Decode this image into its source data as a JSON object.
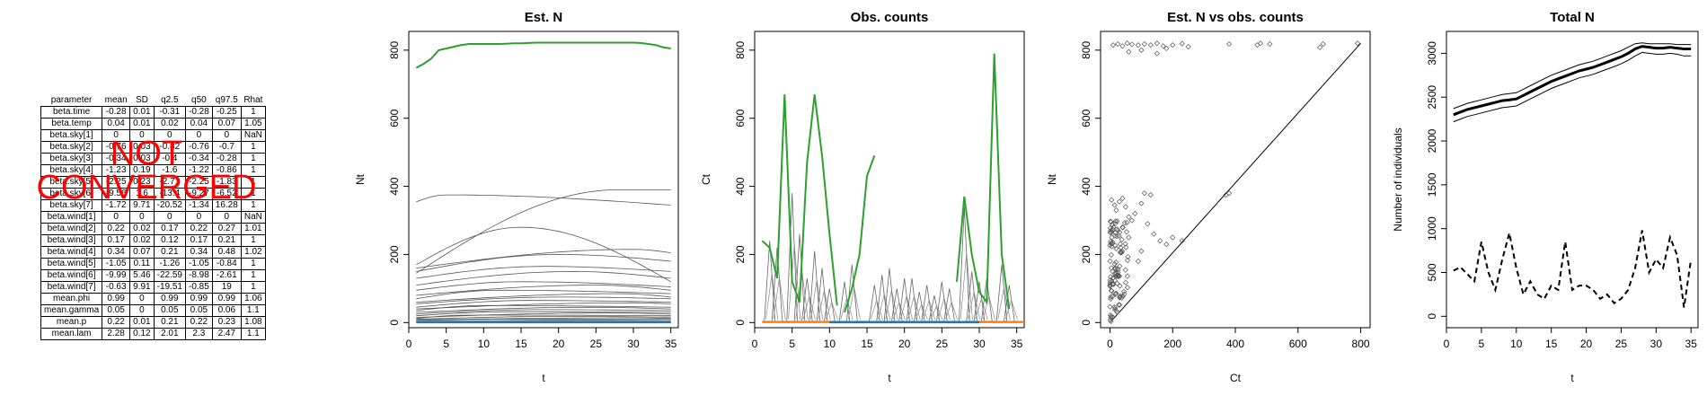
{
  "summary_table": {
    "columns": [
      "parameter",
      "mean",
      "SD",
      "q2.5",
      "q50",
      "q97.5",
      "Rhat"
    ],
    "rows": [
      [
        "beta.time",
        "-0.28",
        "0.01",
        "-0.31",
        "-0.28",
        "-0.25",
        "1"
      ],
      [
        "beta.temp",
        "0.04",
        "0.01",
        "0.02",
        "0.04",
        "0.07",
        "1.05"
      ],
      [
        "beta.sky[1]",
        "0",
        "0",
        "0",
        "0",
        "0",
        "NaN"
      ],
      [
        "beta.sky[2]",
        "-0.76",
        "0.03",
        "-0.82",
        "-0.76",
        "-0.7",
        "1"
      ],
      [
        "beta.sky[3]",
        "-0.34",
        "0.03",
        "-0.4",
        "-0.34",
        "-0.28",
        "1"
      ],
      [
        "beta.sky[4]",
        "-1.23",
        "0.19",
        "-1.6",
        "-1.22",
        "-0.86",
        "1"
      ],
      [
        "beta.sky[5]",
        "-2.25",
        "0.23",
        "-2.71",
        "-2.25",
        "-1.83",
        "1"
      ],
      [
        "beta.sky[6]",
        "-9.56",
        "1.6",
        "-13.4",
        "-9.27",
        "-6.52",
        "1"
      ],
      [
        "beta.sky[7]",
        "-1.72",
        "9.71",
        "-20.52",
        "-1.34",
        "16.28",
        "1"
      ],
      [
        "beta.wind[1]",
        "0",
        "0",
        "0",
        "0",
        "0",
        "NaN"
      ],
      [
        "beta.wind[2]",
        "0.22",
        "0.02",
        "0.17",
        "0.22",
        "0.27",
        "1.01"
      ],
      [
        "beta.wind[3]",
        "0.17",
        "0.02",
        "0.12",
        "0.17",
        "0.21",
        "1"
      ],
      [
        "beta.wind[4]",
        "0.34",
        "0.07",
        "0.21",
        "0.34",
        "0.48",
        "1.02"
      ],
      [
        "beta.wind[5]",
        "-1.05",
        "0.11",
        "-1.26",
        "-1.05",
        "-0.84",
        "1"
      ],
      [
        "beta.wind[6]",
        "-9.99",
        "5.46",
        "-22.59",
        "-8.98",
        "-2.61",
        "1"
      ],
      [
        "beta.wind[7]",
        "-0.63",
        "9.91",
        "-19.51",
        "-0.85",
        "19",
        "1"
      ],
      [
        "mean.phi",
        "0.99",
        "0",
        "0.99",
        "0.99",
        "0.99",
        "1.06"
      ],
      [
        "mean.gamma",
        "0.05",
        "0",
        "0.05",
        "0.05",
        "0.06",
        "1.1"
      ],
      [
        "mean.p",
        "0.22",
        "0.01",
        "0.21",
        "0.22",
        "0.23",
        "1.08"
      ],
      [
        "mean.lam",
        "2.28",
        "0.12",
        "2.01",
        "2.3",
        "2.47",
        "1.1"
      ]
    ],
    "overlay_lines": [
      "NOT",
      "CONVERGED"
    ],
    "overlay_color": "#ff0000"
  },
  "chart_data": [
    {
      "type": "line",
      "title": "Est. N",
      "xlabel": "t",
      "ylabel": "Nt",
      "xlim": [
        0,
        36
      ],
      "ylim": [
        -15,
        855
      ],
      "xticks": [
        0,
        5,
        10,
        15,
        20,
        25,
        30,
        35
      ],
      "yticks": [
        0,
        200,
        400,
        600,
        800
      ],
      "x": [
        1,
        2,
        3,
        4,
        5,
        6,
        7,
        8,
        9,
        10,
        11,
        12,
        13,
        14,
        15,
        16,
        17,
        18,
        19,
        20,
        21,
        22,
        23,
        24,
        25,
        26,
        27,
        28,
        29,
        30,
        31,
        32,
        33,
        34,
        35
      ],
      "highlight": {
        "color": "#2ca02c",
        "values": [
          748,
          760,
          775,
          800,
          805,
          810,
          815,
          818,
          818,
          818,
          818,
          818,
          819,
          820,
          820,
          821,
          822,
          822,
          822,
          822,
          822,
          822,
          822,
          822,
          822,
          822,
          822,
          822,
          822,
          822,
          821,
          818,
          815,
          808,
          805
        ]
      },
      "gray_series": [
        {
          "start": 355,
          "end": 345,
          "peak_t": 5,
          "peak": 375
        },
        {
          "start": 145,
          "end": 390,
          "peak_t": 28,
          "peak": 390
        },
        {
          "start": 170,
          "end": 120,
          "peak_t": 15,
          "peak": 280
        },
        {
          "start": 160,
          "end": 205,
          "peak_t": 30,
          "peak": 215
        },
        {
          "start": 150,
          "end": 180,
          "peak_t": 20,
          "peak": 200
        },
        {
          "start": 130,
          "end": 150,
          "peak_t": 18,
          "peak": 165
        },
        {
          "start": 110,
          "end": 130,
          "peak_t": 22,
          "peak": 150
        },
        {
          "start": 95,
          "end": 105,
          "peak_t": 15,
          "peak": 120
        },
        {
          "start": 80,
          "end": 95,
          "peak_t": 25,
          "peak": 110
        },
        {
          "start": 70,
          "end": 85,
          "peak_t": 12,
          "peak": 95
        },
        {
          "start": 60,
          "end": 75,
          "peak_t": 28,
          "peak": 85
        },
        {
          "start": 55,
          "end": 70,
          "peak_t": 20,
          "peak": 75
        },
        {
          "start": 45,
          "end": 60,
          "peak_t": 16,
          "peak": 65
        },
        {
          "start": 40,
          "end": 55,
          "peak_t": 30,
          "peak": 58
        },
        {
          "start": 35,
          "end": 45,
          "peak_t": 10,
          "peak": 50
        },
        {
          "start": 30,
          "end": 40,
          "peak_t": 24,
          "peak": 45
        },
        {
          "start": 25,
          "end": 35,
          "peak_t": 18,
          "peak": 38
        },
        {
          "start": 20,
          "end": 30,
          "peak_t": 14,
          "peak": 32
        },
        {
          "start": 15,
          "end": 25,
          "peak_t": 26,
          "peak": 28
        },
        {
          "start": 12,
          "end": 20,
          "peak_t": 8,
          "peak": 22
        },
        {
          "start": 10,
          "end": 16,
          "peak_t": 20,
          "peak": 18
        },
        {
          "start": 8,
          "end": 12,
          "peak_t": 30,
          "peak": 14
        },
        {
          "start": 5,
          "end": 10,
          "peak_t": 12,
          "peak": 10
        },
        {
          "start": 3,
          "end": 6,
          "peak_t": 22,
          "peak": 7
        }
      ],
      "baseline_series": [
        {
          "color": "#ff7f0e",
          "value": 3
        },
        {
          "color": "#1f77b4",
          "value": 1
        }
      ]
    },
    {
      "type": "line",
      "title": "Obs. counts",
      "xlabel": "t",
      "ylabel": "Ct",
      "xlim": [
        0,
        36
      ],
      "ylim": [
        -15,
        855
      ],
      "xticks": [
        0,
        5,
        10,
        15,
        20,
        25,
        30,
        35
      ],
      "yticks": [
        0,
        200,
        400,
        600,
        800
      ],
      "highlight_segments": {
        "color": "#2ca02c",
        "segments": [
          [
            [
              1,
              240
            ],
            [
              2,
              220
            ],
            [
              3,
              130
            ],
            [
              4,
              670
            ],
            [
              5,
              120
            ],
            [
              6,
              60
            ],
            [
              7,
              470
            ],
            [
              8,
              670
            ],
            [
              9,
              490
            ],
            [
              10,
              260
            ],
            [
              11,
              50
            ]
          ],
          [
            [
              12,
              30
            ],
            [
              13,
              100
            ],
            [
              14,
              200
            ],
            [
              15,
              430
            ],
            [
              16,
              490
            ]
          ],
          [
            [
              27,
              120
            ],
            [
              28,
              370
            ],
            [
              29,
              200
            ],
            [
              30,
              90
            ],
            [
              31,
              60
            ],
            [
              32,
              790
            ],
            [
              33,
              200
            ],
            [
              34,
              40
            ]
          ]
        ]
      },
      "gray_spikes": [
        [
          2,
          240
        ],
        [
          3,
          220
        ],
        [
          5,
          380
        ],
        [
          6,
          260
        ],
        [
          7,
          130
        ],
        [
          8,
          210
        ],
        [
          9,
          160
        ],
        [
          10,
          100
        ],
        [
          12,
          120
        ],
        [
          13,
          170
        ],
        [
          16,
          110
        ],
        [
          17,
          140
        ],
        [
          18,
          160
        ],
        [
          19,
          100
        ],
        [
          20,
          130
        ],
        [
          21,
          130
        ],
        [
          22,
          90
        ],
        [
          23,
          110
        ],
        [
          24,
          80
        ],
        [
          25,
          120
        ],
        [
          26,
          100
        ],
        [
          28,
          340
        ],
        [
          29,
          150
        ],
        [
          30,
          120
        ],
        [
          31,
          130
        ],
        [
          33,
          170
        ],
        [
          34,
          110
        ]
      ],
      "baseline_series": [
        {
          "color": "#ff7f0e",
          "value": 2,
          "from": 1,
          "to": 36
        },
        {
          "color": "#1f77b4",
          "value": 1,
          "from": 10,
          "to": 30
        }
      ]
    },
    {
      "type": "scatter",
      "title": "Est. N vs obs. counts",
      "xlabel": "Ct",
      "ylabel": "Nt",
      "xlim": [
        -30,
        830
      ],
      "ylim": [
        -15,
        855
      ],
      "xticks": [
        0,
        200,
        400,
        600,
        800
      ],
      "yticks": [
        0,
        200,
        400,
        600,
        800
      ],
      "identity_line": [
        [
          0,
          0
        ],
        [
          800,
          820
        ]
      ],
      "upper_points": [
        [
          10,
          815
        ],
        [
          25,
          818
        ],
        [
          40,
          812
        ],
        [
          55,
          820
        ],
        [
          70,
          817
        ],
        [
          90,
          815
        ],
        [
          110,
          818
        ],
        [
          130,
          815
        ],
        [
          150,
          820
        ],
        [
          170,
          812
        ],
        [
          200,
          815
        ],
        [
          230,
          819
        ],
        [
          250,
          810
        ],
        [
          60,
          795
        ],
        [
          100,
          800
        ],
        [
          150,
          790
        ],
        [
          180,
          805
        ],
        [
          380,
          818
        ],
        [
          470,
          815
        ],
        [
          480,
          820
        ],
        [
          510,
          818
        ],
        [
          670,
          808
        ],
        [
          680,
          818
        ],
        [
          790,
          820
        ]
      ],
      "mid_points": [
        [
          5,
          360
        ],
        [
          15,
          345
        ],
        [
          20,
          330
        ],
        [
          30,
          355
        ],
        [
          40,
          365
        ],
        [
          50,
          340
        ],
        [
          60,
          310
        ],
        [
          70,
          300
        ],
        [
          80,
          320
        ],
        [
          100,
          350
        ],
        [
          110,
          380
        ],
        [
          130,
          375
        ],
        [
          120,
          290
        ],
        [
          140,
          260
        ],
        [
          160,
          240
        ],
        [
          180,
          230
        ],
        [
          200,
          250
        ],
        [
          230,
          240
        ],
        [
          100,
          210
        ],
        [
          90,
          180
        ],
        [
          60,
          250
        ],
        [
          40,
          280
        ],
        [
          25,
          270
        ],
        [
          380,
          380
        ],
        [
          370,
          375
        ]
      ],
      "dense_cluster": {
        "x_max": 60,
        "y_max": 300,
        "count": 110
      }
    },
    {
      "type": "line",
      "title": "Total N",
      "xlabel": "t",
      "ylabel": "Number of individuals",
      "xlim": [
        0,
        36
      ],
      "ylim": [
        -130,
        3250
      ],
      "xticks": [
        0,
        5,
        10,
        15,
        20,
        25,
        30,
        35
      ],
      "yticks": [
        0,
        500,
        1000,
        1500,
        2000,
        2500,
        3000
      ],
      "x": [
        1,
        2,
        3,
        4,
        5,
        6,
        7,
        8,
        9,
        10,
        11,
        12,
        13,
        14,
        15,
        16,
        17,
        18,
        19,
        20,
        21,
        22,
        23,
        24,
        25,
        26,
        27,
        28,
        29,
        30,
        31,
        32,
        33,
        34,
        35
      ],
      "mean": [
        2300,
        2330,
        2360,
        2380,
        2400,
        2420,
        2440,
        2460,
        2470,
        2480,
        2520,
        2560,
        2600,
        2640,
        2680,
        2710,
        2740,
        2770,
        2800,
        2820,
        2840,
        2870,
        2900,
        2930,
        2960,
        3000,
        3050,
        3080,
        3070,
        3060,
        3060,
        3070,
        3060,
        3050,
        3050
      ],
      "upper": [
        2370,
        2400,
        2430,
        2450,
        2470,
        2490,
        2510,
        2530,
        2540,
        2550,
        2590,
        2630,
        2670,
        2710,
        2750,
        2780,
        2810,
        2840,
        2870,
        2890,
        2910,
        2940,
        2970,
        3000,
        3030,
        3070,
        3110,
        3120,
        3110,
        3110,
        3110,
        3110,
        3100,
        3100,
        3100
      ],
      "lower": [
        2220,
        2250,
        2280,
        2300,
        2320,
        2340,
        2360,
        2380,
        2390,
        2400,
        2440,
        2480,
        2520,
        2560,
        2600,
        2630,
        2660,
        2690,
        2720,
        2740,
        2760,
        2790,
        2820,
        2850,
        2880,
        2920,
        2970,
        3010,
        3000,
        2990,
        2990,
        3000,
        2990,
        2970,
        2970
      ],
      "observed_total": [
        520,
        560,
        480,
        400,
        850,
        500,
        300,
        650,
        950,
        550,
        250,
        400,
        250,
        200,
        350,
        300,
        850,
        300,
        350,
        350,
        300,
        200,
        250,
        150,
        200,
        300,
        550,
        980,
        500,
        650,
        550,
        900,
        700,
        100,
        650
      ]
    }
  ]
}
